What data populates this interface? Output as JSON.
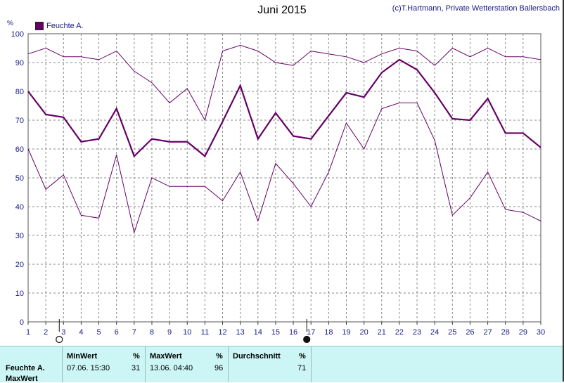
{
  "title": "Juni 2015",
  "copyright": "(c)T.Hartmann, Private Wetterstation Ballersbach",
  "unit": "%",
  "legend": "Feuchte A.",
  "colors": {
    "series": "#660066",
    "grid": "#888888",
    "axis": "#1a1a8a"
  },
  "chart_data": {
    "type": "line",
    "x": [
      1,
      2,
      3,
      4,
      5,
      6,
      7,
      8,
      9,
      10,
      11,
      12,
      13,
      14,
      15,
      16,
      17,
      18,
      19,
      20,
      21,
      22,
      23,
      24,
      25,
      26,
      27,
      28,
      29,
      30
    ],
    "ylim": [
      0,
      100
    ],
    "yticks": [
      0,
      10,
      20,
      30,
      40,
      50,
      60,
      70,
      80,
      90,
      100
    ],
    "grid": true,
    "legend_position": "top-left",
    "series": [
      {
        "name": "Feuchte A.",
        "role": "avg",
        "values": [
          80,
          72,
          71,
          62.5,
          63.5,
          74,
          57.5,
          63.5,
          62.5,
          62.5,
          57.5,
          69.5,
          82,
          63.5,
          72.5,
          64.5,
          63.5,
          71.5,
          79.5,
          78,
          86.5,
          91,
          87.5,
          79.5,
          70.5,
          70,
          77.5,
          65.5,
          65.5,
          60.5
        ]
      },
      {
        "role": "max",
        "values": [
          93,
          95,
          92,
          92,
          91,
          94,
          87,
          83,
          76,
          81,
          70,
          94,
          96,
          94,
          90,
          89,
          94,
          93,
          92,
          90,
          93,
          95,
          94,
          89,
          95,
          92,
          95,
          92,
          92,
          91
        ]
      },
      {
        "role": "min",
        "values": [
          60,
          46,
          51,
          37,
          36,
          58,
          31,
          50,
          47,
          47,
          47,
          42,
          52,
          35,
          55,
          48,
          40,
          52,
          69,
          60,
          74,
          76,
          76,
          63,
          37,
          43,
          52,
          39,
          38,
          35
        ]
      }
    ],
    "markers": [
      {
        "x": 3,
        "type": "open-circle"
      },
      {
        "x": 17,
        "type": "filled-circle"
      }
    ]
  },
  "stats": {
    "row_label_1": "Feuchte A.",
    "row_label_2": "MaxWert",
    "min_header": "MinWert",
    "min_unit": "%",
    "min_date": "07.06.  15:30",
    "min_value": "31",
    "max_header": "MaxWert",
    "max_unit": "%",
    "max_date": "13.06.  04:40",
    "max_value": "96",
    "avg_header": "Durchschnitt",
    "avg_unit": "%",
    "avg_value": "71"
  }
}
